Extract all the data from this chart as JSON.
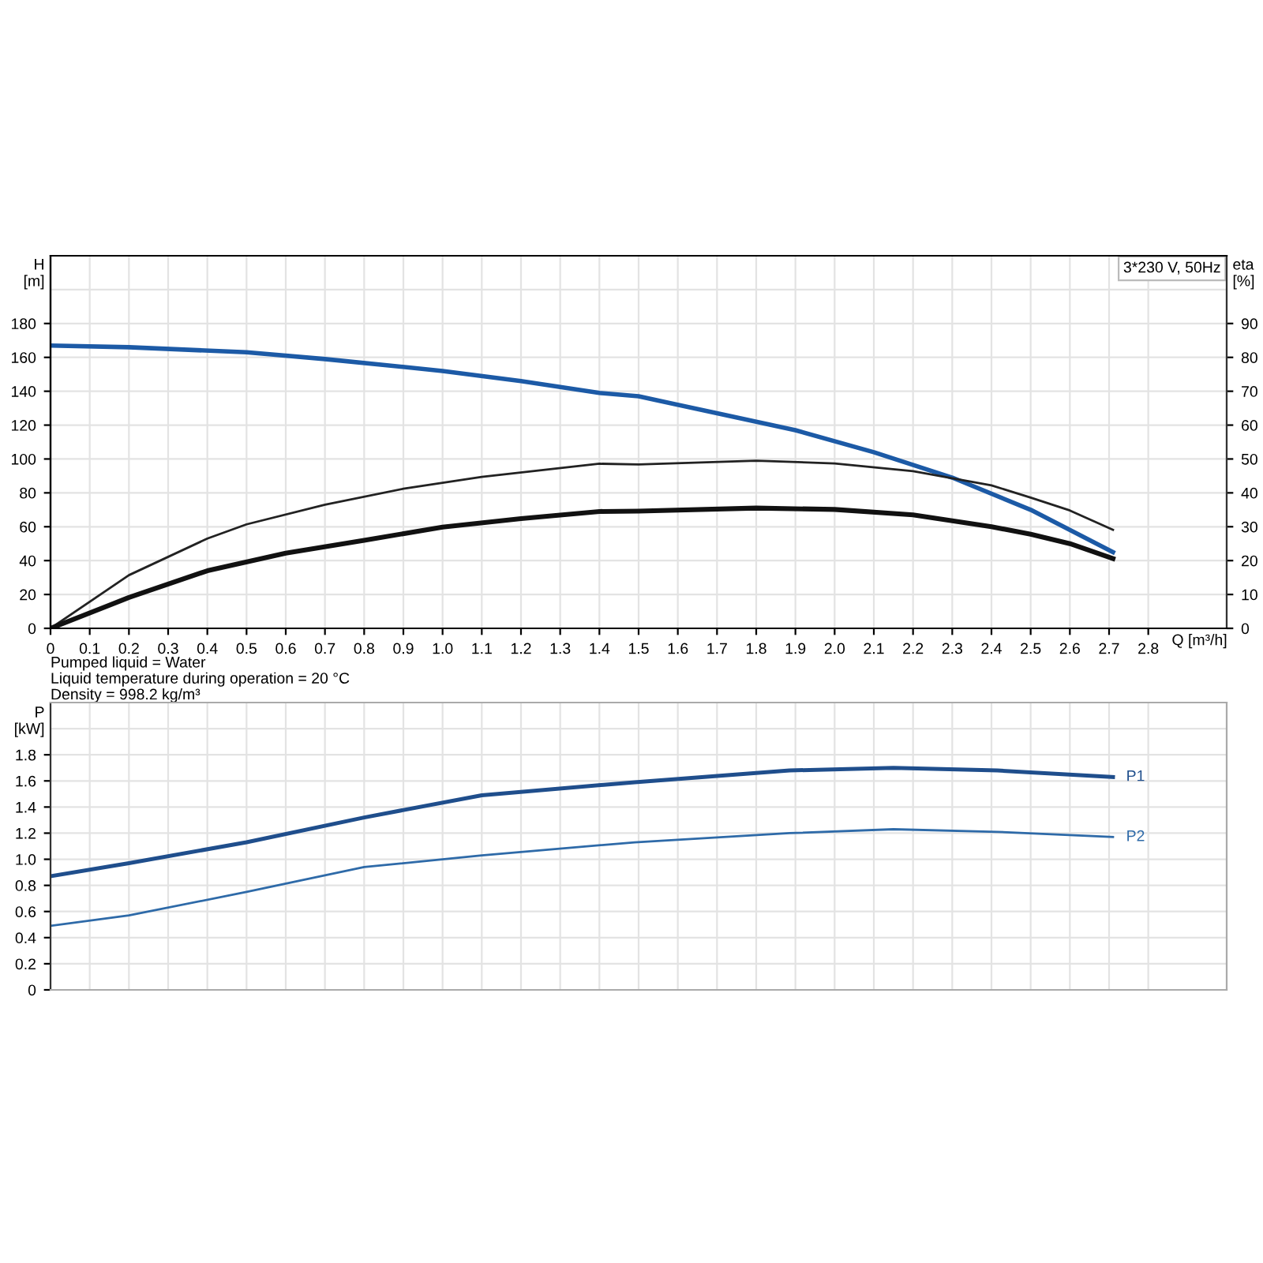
{
  "chart_data": [
    {
      "type": "line",
      "xlabel": "Q [m³/h]",
      "ylabel": "H\n[m]",
      "y2label": "eta\n[%]",
      "xlim": [
        0,
        3.0
      ],
      "ylim": [
        0,
        220
      ],
      "y2lim": [
        0,
        110
      ],
      "xticks": [
        0,
        0.1,
        0.2,
        0.3,
        0.4,
        0.5,
        0.6,
        0.7,
        0.8,
        0.9,
        {
          "value": 1.0,
          "label": "1.0"
        },
        1.1,
        1.2,
        1.3,
        1.4,
        1.5,
        1.6,
        1.7,
        1.8,
        1.9,
        {
          "value": 2.0,
          "label": "2.0"
        },
        2.1,
        2.2,
        2.3,
        2.4,
        2.5,
        2.6,
        2.7,
        2.8
      ],
      "yticks": [
        0,
        20,
        40,
        60,
        80,
        100,
        120,
        140,
        160,
        180
      ],
      "y2ticks": [
        0,
        10,
        20,
        30,
        40,
        50,
        60,
        70,
        80,
        90
      ],
      "grid": true,
      "line_style": "solid",
      "marker": "none",
      "annotations": [
        "3*230 V, 50Hz",
        "Pumped liquid = Water",
        "Liquid temperature during operation = 20 °C",
        "Density = 998.2 kg/m³"
      ],
      "series": [
        {
          "color": "#1c5aa6",
          "x": [
            0,
            0.2,
            0.5,
            0.7,
            1.0,
            1.2,
            1.4,
            1.5,
            1.7,
            1.9,
            2.1,
            2.3,
            2.5,
            2.71
          ],
          "values": [
            167,
            166,
            163,
            159,
            152,
            146,
            139,
            137,
            127,
            117,
            104,
            89,
            70,
            45
          ]
        },
        {
          "color": "#222222",
          "axis": "y2",
          "x": [
            0,
            0.2,
            0.4,
            0.5,
            0.7,
            0.9,
            1.1,
            1.4,
            1.5,
            1.8,
            2.0,
            2.2,
            2.4,
            2.5,
            2.6,
            2.71
          ],
          "values": [
            0,
            15.7,
            26.5,
            30.7,
            36.5,
            41.2,
            44.7,
            48.6,
            48.4,
            49.5,
            48.7,
            46.4,
            42.2,
            38.6,
            34.8,
            29.1
          ]
        },
        {
          "color": "#111111",
          "axis": "y2",
          "x": [
            0,
            0.2,
            0.4,
            0.6,
            0.8,
            1.0,
            1.2,
            1.4,
            1.5,
            1.8,
            2.0,
            2.2,
            2.4,
            2.5,
            2.6,
            2.71
          ],
          "values": [
            0,
            9.1,
            17,
            22.2,
            26,
            29.9,
            32.4,
            34.5,
            34.6,
            35.5,
            35.1,
            33.5,
            30,
            27.8,
            25,
            20.6
          ]
        }
      ]
    },
    {
      "type": "line",
      "ylabel": "P\n[kW]",
      "xlim": [
        0,
        3.0
      ],
      "ylim": [
        0,
        2.2
      ],
      "yticks": [
        0,
        0.2,
        0.4,
        0.6,
        0.8,
        {
          "value": 1.0,
          "label": "1.0"
        },
        1.2,
        1.4,
        1.6,
        1.8
      ],
      "tick_labels": "y",
      "grid": true,
      "line_style": "solid",
      "marker": "none",
      "series": [
        {
          "name": "P1",
          "color": "#1f4e8c",
          "x": [
            0,
            0.2,
            0.5,
            0.8,
            1.1,
            1.49,
            1.885,
            2.15,
            2.415,
            2.71
          ],
          "values": [
            0.87,
            0.97,
            1.13,
            1.32,
            1.49,
            1.59,
            1.68,
            1.7,
            1.68,
            1.63
          ]
        },
        {
          "name": "P2",
          "color": "#2e6aa8",
          "x": [
            0,
            0.2,
            0.5,
            0.8,
            1.1,
            1.49,
            1.885,
            2.15,
            2.415,
            2.71
          ],
          "values": [
            0.49,
            0.57,
            0.75,
            0.94,
            1.03,
            1.13,
            1.2,
            1.23,
            1.21,
            1.17
          ]
        }
      ]
    }
  ]
}
